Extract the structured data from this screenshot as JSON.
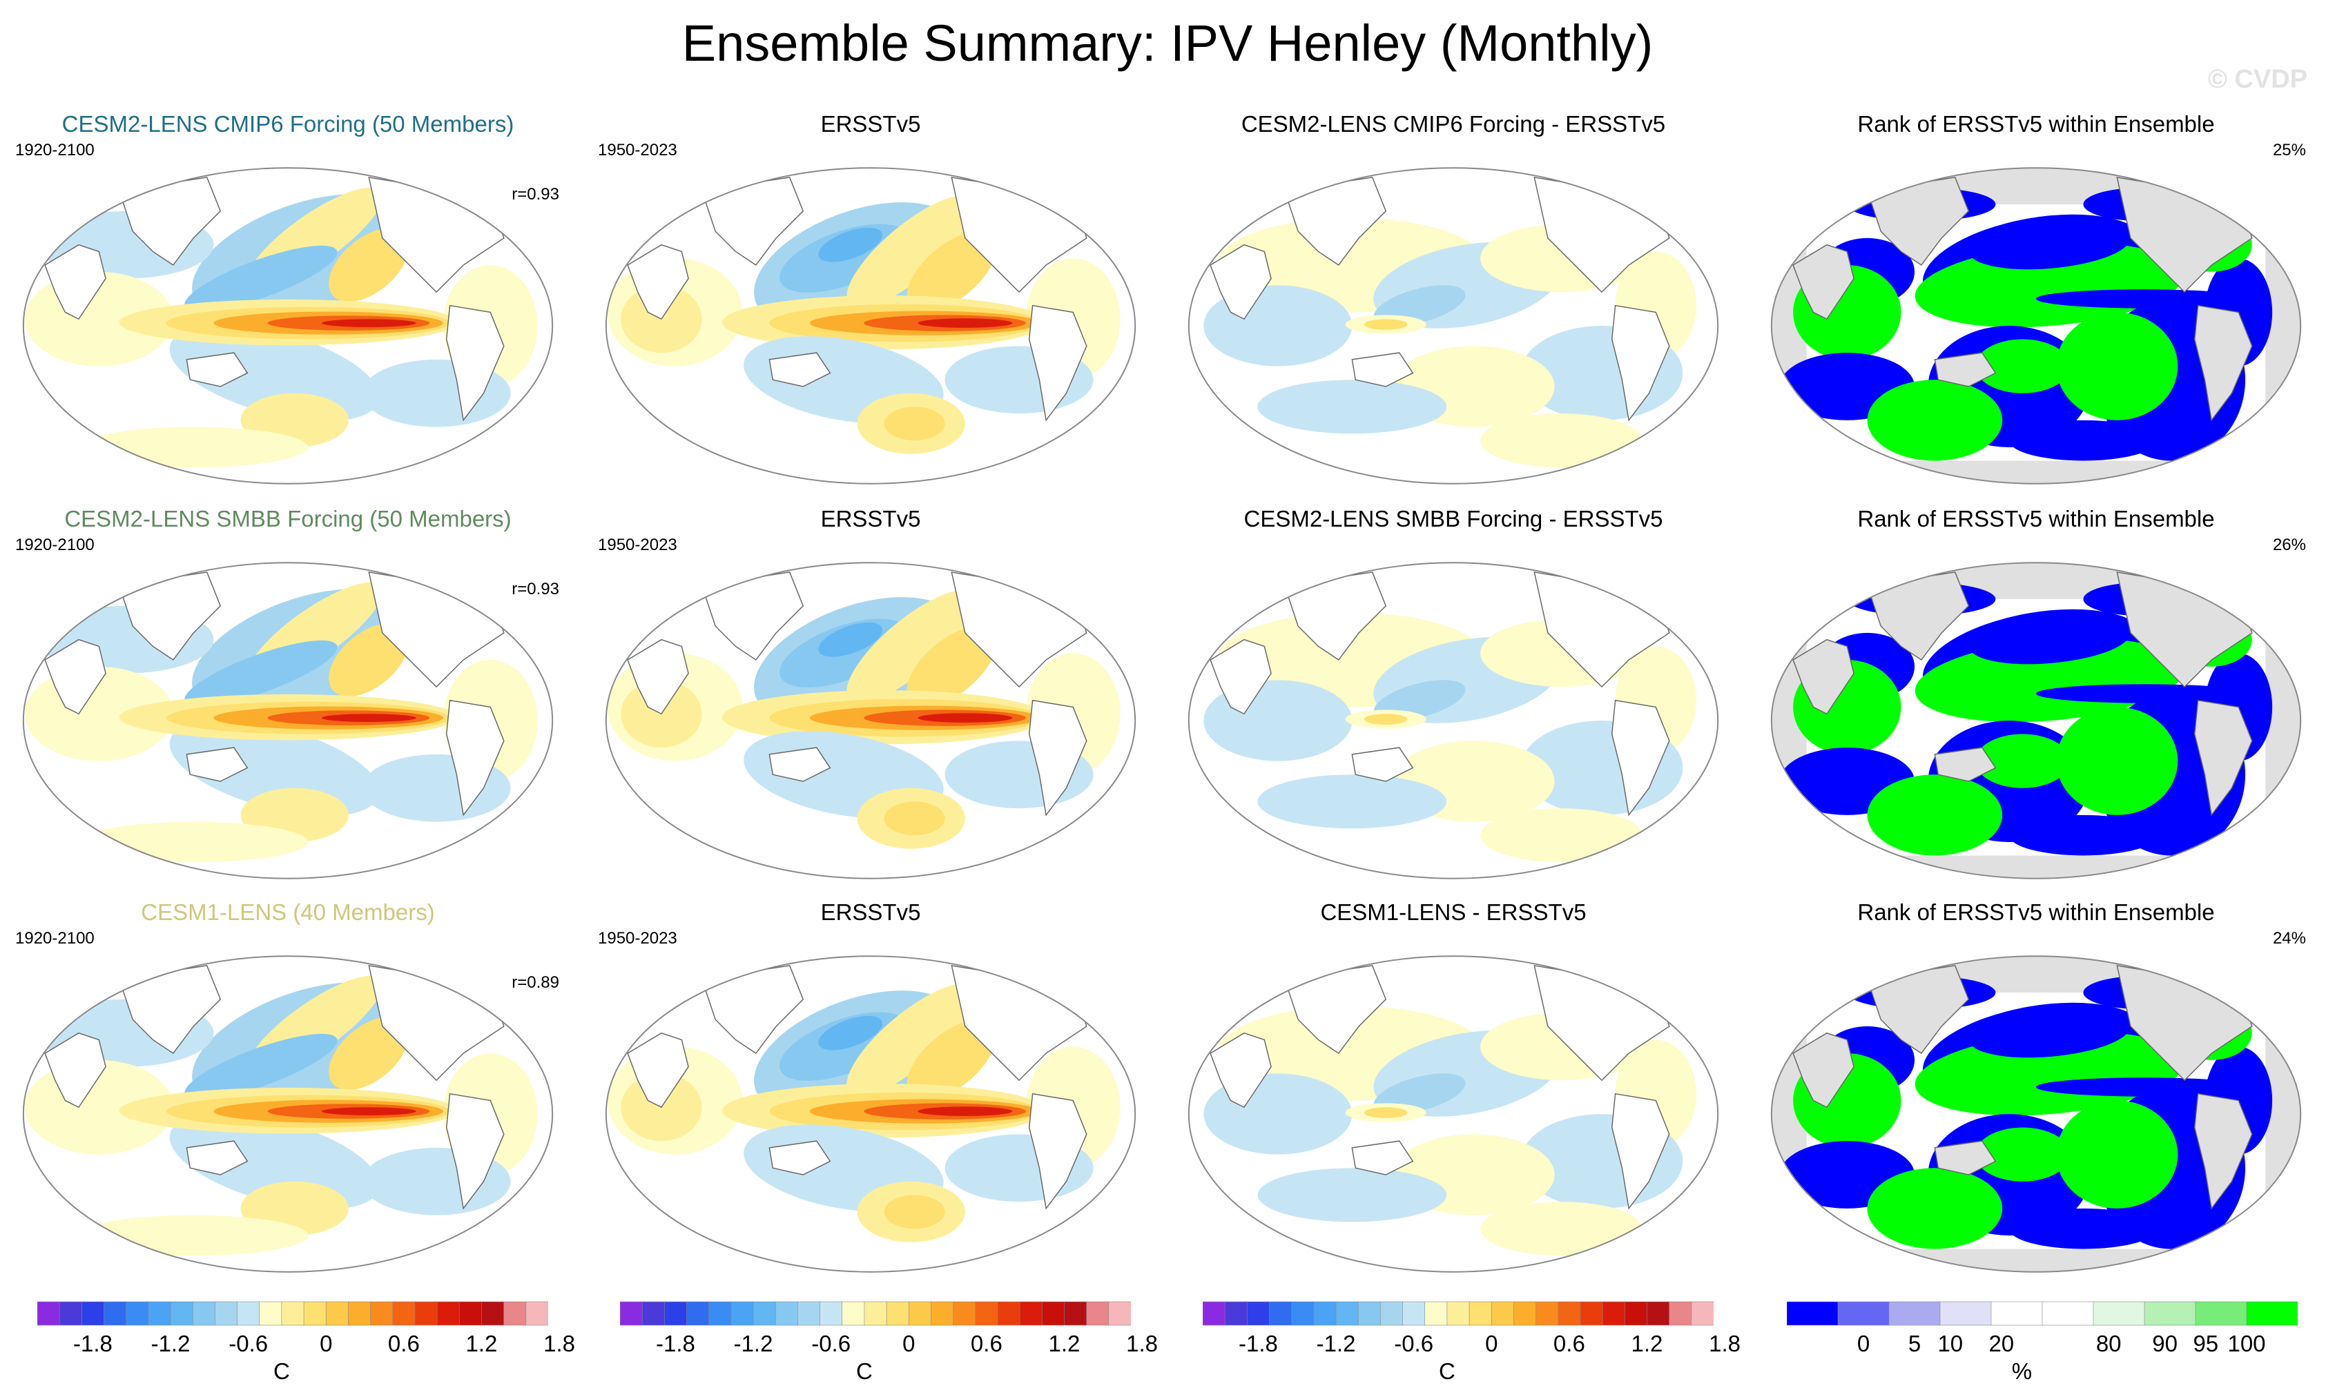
{
  "figure": {
    "title": "Ensemble Summary: IPV Henley (Monthly)",
    "watermark": "© CVDP"
  },
  "rows": [
    {
      "model": {
        "title": "CESM2-LENS CMIP6 Forcing (50 Members)",
        "title_color": "#1f6e8a",
        "period": "1920-2100",
        "corr": "r=0.93"
      },
      "obs": {
        "title": "ERSSTv5",
        "period": "1950-2023"
      },
      "diff": {
        "title": "CESM2-LENS CMIP6 Forcing - ERSSTv5"
      },
      "rank": {
        "title": "Rank of ERSSTv5 within Ensemble",
        "percent": "25%"
      }
    },
    {
      "model": {
        "title": "CESM2-LENS SMBB Forcing (50 Members)",
        "title_color": "#5f8a5f",
        "period": "1920-2100",
        "corr": "r=0.93"
      },
      "obs": {
        "title": "ERSSTv5",
        "period": "1950-2023"
      },
      "diff": {
        "title": "CESM2-LENS SMBB Forcing - ERSSTv5"
      },
      "rank": {
        "title": "Rank of ERSSTv5 within Ensemble",
        "percent": "26%"
      }
    },
    {
      "model": {
        "title": "CESM1-LENS (40 Members)",
        "title_color": "#cfc77a",
        "period": "1920-2100",
        "corr": "r=0.89"
      },
      "obs": {
        "title": "ERSSTv5",
        "period": "1950-2023"
      },
      "diff": {
        "title": "CESM1-LENS - ERSSTv5"
      },
      "rank": {
        "title": "Rank of ERSSTv5 within Ensemble",
        "percent": "24%"
      }
    }
  ],
  "temp_colorbar": {
    "unit": "C",
    "tick_labels": [
      "-1.8",
      "-1.2",
      "-0.6",
      "0",
      "0.6",
      "1.2",
      "1.8"
    ],
    "colors": [
      "#8a2be2",
      "#4b3ad9",
      "#2c3fe8",
      "#2f6cf0",
      "#3a8cf5",
      "#4aa3f5",
      "#62b6f2",
      "#86c8f0",
      "#a6d5ef",
      "#c6e5f4",
      "#fefcc8",
      "#fdef9a",
      "#fde070",
      "#fdc94a",
      "#fbad2c",
      "#f98b1e",
      "#f36413",
      "#ea3d0c",
      "#dc1c0a",
      "#c80f0a",
      "#b51114",
      "#e8868a",
      "#f5b7ba"
    ]
  },
  "rank_colorbar": {
    "unit": "%",
    "tick_labels": [
      "0",
      "5",
      "10",
      "20",
      "80",
      "90",
      "95",
      "100"
    ],
    "colors": [
      "#0000ff",
      "#6666f5",
      "#aaaaf0",
      "#e0e0f6",
      "#ffffff",
      "#ffffff",
      "#e2f7e2",
      "#b5f0b5",
      "#78ec78",
      "#00ff00"
    ]
  },
  "map_colors": {
    "neutral": "#ffffff",
    "pale_warm": "#fefcc8",
    "light_warm": "#fdef9a",
    "warm": "#fde070",
    "orange": "#fbad2c",
    "deep_orange": "#f36413",
    "red": "#dc1c0a",
    "pale_cool": "#c6e5f4",
    "light_cool": "#a6d5ef",
    "cool": "#86c8f0",
    "mid_cool": "#62b6f2",
    "land": "#ffffff",
    "rank_land": "#e0e0e0",
    "rank_high": "#00ff00",
    "rank_low": "#0000ff",
    "outline": "#666666"
  }
}
